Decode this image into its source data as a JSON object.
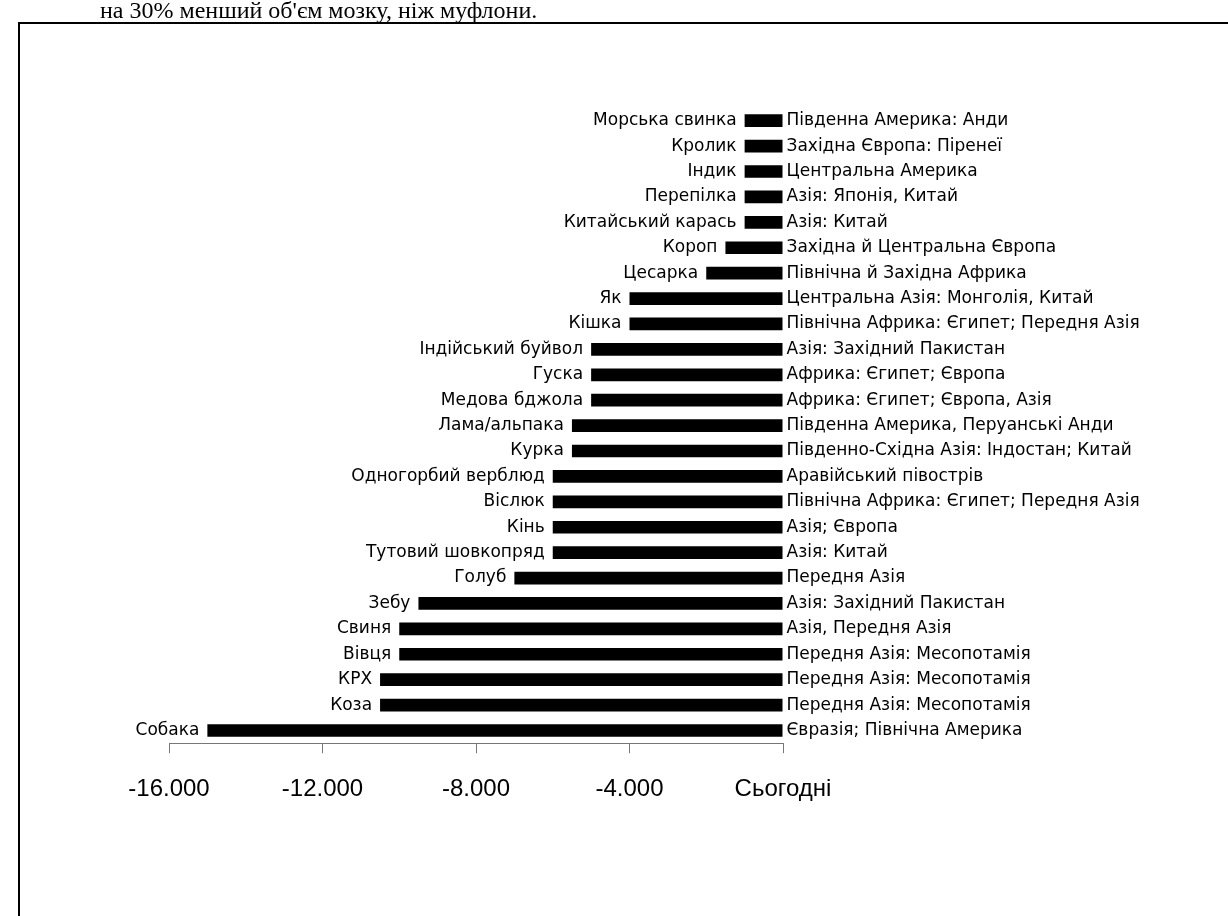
{
  "chart_data": {
    "type": "bar",
    "orientation": "horizontal",
    "color": "#000000",
    "categories": [
      "Морська свинка",
      "Кролик",
      "Індик",
      "Перепілка",
      "Китайський карась",
      "Короп",
      "Цесарка",
      "Як",
      "Кішка",
      "Індійський буйвол",
      "Гуска",
      "Медова бджола",
      "Лама/альпака",
      "Курка",
      "Одногорбий верблюд",
      "Віслюк",
      "Кінь",
      "Тутовий шовкопряд",
      "Голуб",
      "Зебу",
      "Свиня",
      "Вівця",
      "КРХ",
      "Коза",
      "Собака"
    ],
    "values": [
      -1000,
      -1000,
      -1000,
      -1000,
      -1000,
      -1500,
      -2000,
      -4000,
      -4000,
      -5000,
      -5000,
      -5000,
      -5500,
      -5500,
      -6000,
      -6000,
      -6000,
      -6000,
      -7000,
      -9500,
      -10000,
      -10000,
      -10500,
      -10500,
      -15000
    ],
    "value_labels": [
      "Південна Америка: Анди",
      "Західна Європа: Піренеї",
      "Центральна Америка",
      "Азія: Японія, Китай",
      "Азія: Китай",
      "Західна й Центральна Європа",
      "Північна й Західна Африка",
      "Центральна Азія: Монголія, Китай",
      "Північна Африка: Єгипет; Передня Азія",
      "Азія: Західний Пакистан",
      "Африка: Єгипет; Європа",
      "Африка: Єгипет; Європа, Азія",
      "Південна Америка, Перуанські Анди",
      "Південно-Східна Азія: Індостан; Китай",
      "Аравійський півострів",
      "Північна Африка: Єгипет; Передня Азія",
      "Азія; Європа",
      "Азія: Китай",
      "Передня Азія",
      "Азія: Західний Пакистан",
      "Азія, Передня Азія",
      "Передня Азія: Месопотамія",
      "Передня Азія: Месопотамія",
      "Передня Азія: Месопотамія",
      "Євразія; Північна Америка"
    ],
    "xlim": [
      -16000,
      0
    ],
    "xticks": [
      {
        "value": -16000,
        "label": "-16.000"
      },
      {
        "value": -12000,
        "label": "-12.000"
      },
      {
        "value": -8000,
        "label": "-8.000"
      },
      {
        "value": -4000,
        "label": "-4.000"
      },
      {
        "value": 0,
        "label": "Сьогодні"
      }
    ],
    "grid": false,
    "legend": false,
    "annotations": [
      "на 30% менший об'єм мозку, ніж муфлони."
    ]
  }
}
